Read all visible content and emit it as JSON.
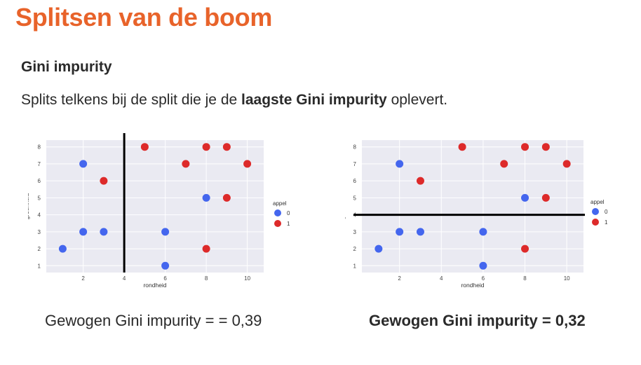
{
  "header": {
    "title": "Splitsen van de boom",
    "section": "Gini impurity",
    "intro_before": "Splits telkens bij de split die je de ",
    "intro_bold": "laagste Gini impurity",
    "intro_after": " oplevert."
  },
  "captions": {
    "left": "Gewogen Gini impurity = = 0,39",
    "right": "Gewogen Gini impurity = 0,32"
  },
  "colors": {
    "class_0": "#4466ee",
    "class_1": "#dd2a2a",
    "plot_bg": "#eaeaf2",
    "split_line": "#000000",
    "title": "#e8632a"
  },
  "chart_data": [
    {
      "type": "scatter",
      "title": "",
      "xlabel": "rondheid",
      "ylabel": "groenheid",
      "xlim": [
        0.2,
        10.8
      ],
      "ylim": [
        0.6,
        8.4
      ],
      "xticks": [
        2,
        4,
        6,
        8,
        10
      ],
      "yticks": [
        1,
        2,
        3,
        4,
        5,
        6,
        7,
        8
      ],
      "grid": true,
      "legend": {
        "title": "appel",
        "placement": "right",
        "entries": [
          "0",
          "1"
        ]
      },
      "split": {
        "orientation": "vertical",
        "value": 4
      },
      "series": [
        {
          "name": "0",
          "color": "#4466ee",
          "points": [
            [
              1,
              2
            ],
            [
              2,
              3
            ],
            [
              2,
              7
            ],
            [
              3,
              3
            ],
            [
              6,
              3
            ],
            [
              6,
              1
            ],
            [
              8,
              5
            ]
          ]
        },
        {
          "name": "1",
          "color": "#dd2a2a",
          "points": [
            [
              3,
              6
            ],
            [
              5,
              8
            ],
            [
              7,
              7
            ],
            [
              8,
              8
            ],
            [
              9,
              8
            ],
            [
              10,
              7
            ],
            [
              9,
              5
            ],
            [
              8,
              2
            ]
          ]
        }
      ]
    },
    {
      "type": "scatter",
      "title": "",
      "xlabel": "rondheid",
      "ylabel": "groenheid",
      "xlim": [
        0.2,
        10.8
      ],
      "ylim": [
        0.6,
        8.4
      ],
      "xticks": [
        2,
        4,
        6,
        8,
        10
      ],
      "yticks": [
        1,
        2,
        3,
        4,
        5,
        6,
        7,
        8
      ],
      "grid": true,
      "legend": {
        "title": "appel",
        "placement": "right",
        "entries": [
          "0",
          "1"
        ]
      },
      "split": {
        "orientation": "horizontal",
        "value": 4
      },
      "series": [
        {
          "name": "0",
          "color": "#4466ee",
          "points": [
            [
              1,
              2
            ],
            [
              2,
              3
            ],
            [
              2,
              7
            ],
            [
              3,
              3
            ],
            [
              6,
              3
            ],
            [
              6,
              1
            ],
            [
              8,
              5
            ]
          ]
        },
        {
          "name": "1",
          "color": "#dd2a2a",
          "points": [
            [
              3,
              6
            ],
            [
              5,
              8
            ],
            [
              7,
              7
            ],
            [
              8,
              8
            ],
            [
              9,
              8
            ],
            [
              10,
              7
            ],
            [
              9,
              5
            ],
            [
              8,
              2
            ]
          ]
        }
      ]
    }
  ]
}
